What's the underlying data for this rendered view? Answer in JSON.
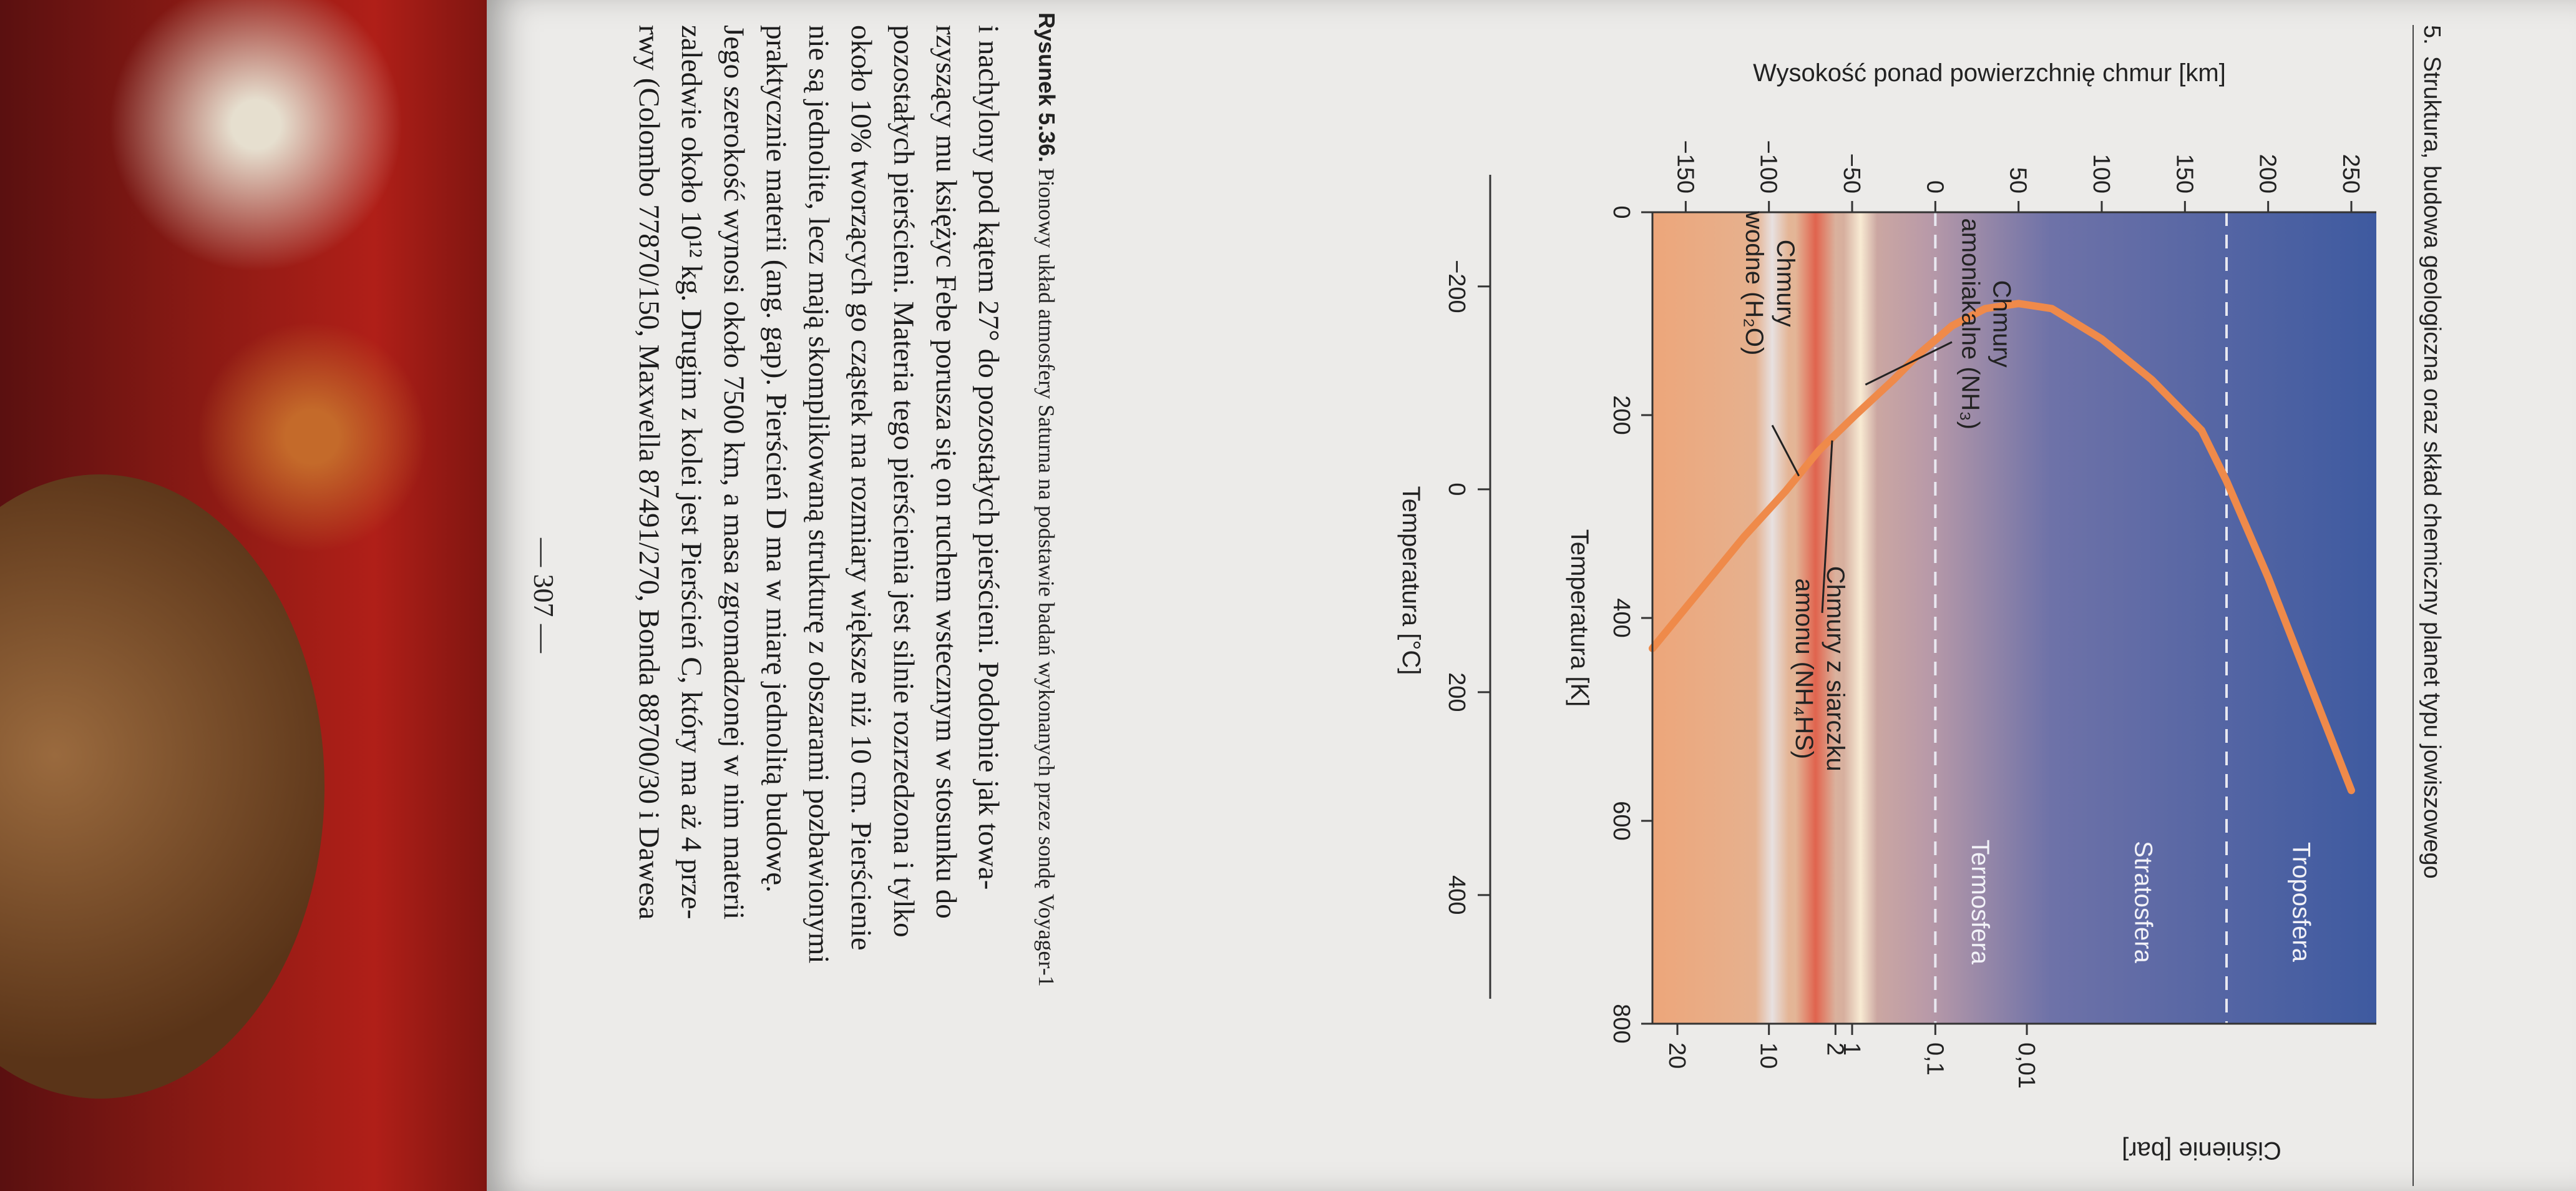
{
  "figure_title": {
    "number": "5.",
    "text": "Struktura, budowa geologiczna oraz skład chemiczny planet typu jowiszowego"
  },
  "chart_data": {
    "type": "line",
    "ylabel": "Wysokość ponad powierzchnię chmur [km]",
    "xlabel": "Temperatura [K]",
    "xlabel_secondary": "Temperatura [°C]",
    "ylabel_right": "Ciśnienie [bar]",
    "xlim": [
      0,
      800
    ],
    "ylim": [
      -170,
      265
    ],
    "x_ticks": [
      "0",
      "200",
      "400",
      "600",
      "800"
    ],
    "y_ticks": [
      "250",
      "200",
      "150",
      "100",
      "50",
      "0",
      "−50",
      "−100",
      "−150"
    ],
    "celsius_ticks": [
      "−200",
      "0",
      "200",
      "400"
    ],
    "pressure_ticks": [
      "0,01",
      "0,1",
      "1",
      "2",
      "10",
      "20"
    ],
    "series": [
      {
        "points": [
          [
            570,
            250
          ],
          [
            360,
            200
          ],
          [
            265,
            175
          ],
          [
            215,
            160
          ],
          [
            165,
            130
          ],
          [
            125,
            100
          ],
          [
            95,
            70
          ],
          [
            90,
            50
          ],
          [
            95,
            30
          ],
          [
            112,
            10
          ],
          [
            140,
            -10
          ],
          [
            165,
            -25
          ],
          [
            200,
            -48
          ],
          [
            235,
            -70
          ],
          [
            275,
            -90
          ],
          [
            320,
            -115
          ],
          [
            370,
            -140
          ],
          [
            430,
            -170
          ]
        ]
      }
    ],
    "layer_labels": [
      "Troposfera",
      "Stratosfera",
      "Termosfera"
    ],
    "annotations": [
      "Chmury amoniakalne (NH₃)",
      "Chmury z siarczku amonu (NH₄HS)",
      "Chmury wodne (H₂O)"
    ],
    "colors": {
      "upper": "#3e5aa0",
      "lower": "#e8a77a",
      "curve": "#ef8a4a",
      "red_band": "#e05a45"
    }
  },
  "caption": {
    "prefix": "Rysunek 5.36.",
    "text": "Pionowy układ atmosfery Saturna na podstawie badań wykonanych przez sondę Voyager-1"
  },
  "body_text": [
    "i nachylony pod kątem 27° do pozostałych pierścieni. Podobnie jak towa-",
    "rzyszący mu księżyc Febe porusza się on ruchem wstecznym w stosunku do",
    "pozostałych pierścieni. Materia tego pierścienia jest silnie rozrzedzona i tylko",
    "około 10% tworzących go cząstek ma rozmiary większe niż 10 cm. Pierścienie",
    "nie są jednolite, lecz mają skomplikowaną strukturę z obszarami pozbawionymi",
    "praktycznie materii (ang. gap). Pierścień D ma w miarę jednolitą budowę.",
    "Jego szerokość wynosi około 7500 km, a masa zgromadzonej w nim materii",
    "zaledwie około 10¹² kg. Drugim z kolei jest Pierścień C, który ma aż 4 prze-",
    "rwy (Colombo 77870/150, Maxwella 87491/270, Bonda 88700/30 i Dawesa"
  ],
  "page_number": "— 307 —"
}
